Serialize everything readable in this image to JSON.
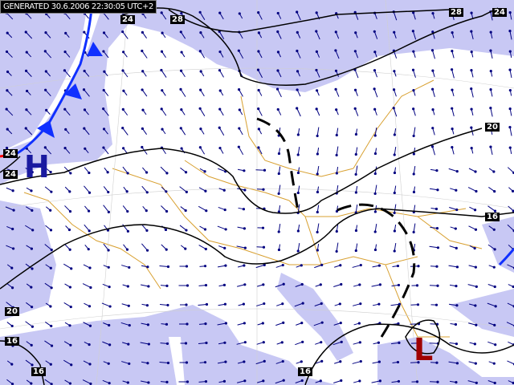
{
  "header": {
    "generated_text": "GENERATED 30.6.2006 22:30:05 UTC+2"
  },
  "colors": {
    "sea": "#c8c8f4",
    "land": "#ffffff",
    "border": "#d8a030",
    "isobar": "#000000",
    "cold_front": "#1030ff",
    "warm_front": "#ff0000",
    "wind_arrow": "#000080",
    "high": "#1a1aa0",
    "low": "#a00000"
  },
  "isobar_labels": [
    {
      "text": "24"
    },
    {
      "text": "28"
    },
    {
      "text": "28"
    },
    {
      "text": "24"
    },
    {
      "text": "20"
    },
    {
      "text": "16"
    },
    {
      "text": "24"
    },
    {
      "text": "24"
    },
    {
      "text": "20"
    },
    {
      "text": "16"
    },
    {
      "text": "16"
    },
    {
      "text": "16"
    }
  ],
  "pressure_centers": {
    "high": "H",
    "low": "L"
  },
  "icons": {
    "wind": "wind-arrow-icon",
    "front": "cold-front-icon"
  }
}
